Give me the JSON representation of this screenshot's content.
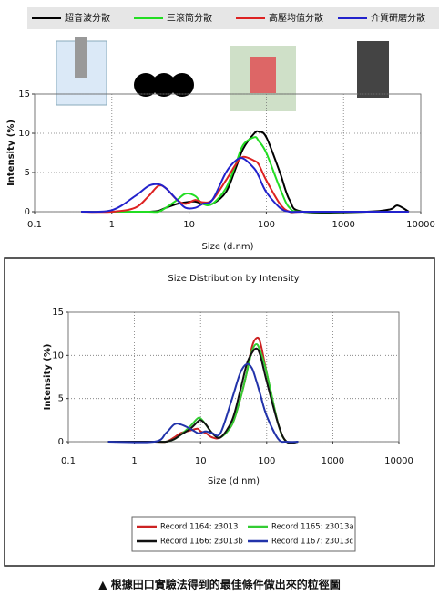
{
  "chart_data": [
    {
      "type": "line",
      "xscale": "log",
      "grid": true,
      "legend": "top",
      "xlabel": "Size (d.nm)",
      "ylabel": "Intensity (%)",
      "xlim": [
        0.1,
        10000
      ],
      "xticks": [
        0.1,
        1,
        10,
        100,
        1000,
        10000
      ],
      "ylim": [
        0,
        15
      ],
      "yticks": [
        0,
        5,
        10,
        15
      ],
      "x": [
        0.4,
        1,
        2,
        3,
        4,
        5,
        7,
        9,
        12,
        15,
        20,
        30,
        40,
        50,
        70,
        80,
        100,
        150,
        200,
        300,
        2000,
        4000,
        5000,
        7000
      ],
      "series": [
        {
          "name": "超音波分散",
          "color": "#000000",
          "values": [
            0,
            0,
            0,
            0,
            0.1,
            0.5,
            1,
            1.2,
            1.3,
            1,
            1,
            2.5,
            5.5,
            8,
            10,
            10.2,
            9.5,
            5,
            1.5,
            0,
            0,
            0.3,
            0.8,
            0
          ]
        },
        {
          "name": "三滾筒分散",
          "color": "#22dd22",
          "values": [
            0,
            0,
            0,
            0,
            0,
            0.5,
            1.5,
            2.3,
            2,
            1,
            1,
            3,
            6,
            8.5,
            9.5,
            9,
            7.5,
            3,
            0.5,
            0,
            0,
            0,
            0,
            0
          ]
        },
        {
          "name": "高壓均值分散",
          "color": "#dd2222",
          "values": [
            0,
            0,
            0.5,
            2,
            3.3,
            3,
            1.5,
            1,
            1.5,
            1.2,
            1.5,
            4,
            6,
            7,
            6.5,
            6,
            4,
            1,
            0,
            0,
            0,
            0,
            0,
            0
          ]
        },
        {
          "name": "介質研磨分散",
          "color": "#2222cc",
          "values": [
            0,
            0.2,
            2,
            3.3,
            3.5,
            3,
            1.5,
            0.5,
            0.5,
            1,
            1.5,
            5,
            6.5,
            6.8,
            5.5,
            4.5,
            2.5,
            0.5,
            0,
            0,
            0,
            0,
            0,
            0
          ]
        }
      ]
    },
    {
      "type": "line",
      "xscale": "log",
      "grid": true,
      "legend": "bottom",
      "title": "Size Distribution by Intensity",
      "xlabel": "Size (d.nm)",
      "ylabel": "Intensity (%)",
      "xlim": [
        0.1,
        10000
      ],
      "xticks": [
        0.1,
        1,
        10,
        100,
        1000,
        10000
      ],
      "ylim": [
        0,
        15
      ],
      "yticks": [
        0,
        5,
        10,
        15
      ],
      "x": [
        0.4,
        2,
        3,
        4,
        5,
        7,
        9,
        10,
        12,
        15,
        20,
        30,
        40,
        50,
        60,
        70,
        80,
        100,
        150,
        200,
        300
      ],
      "series": [
        {
          "name": "Record 1164: z3013",
          "color": "#cc2222",
          "values": [
            0,
            0,
            0,
            0.5,
            1,
            1.3,
            1.5,
            1.2,
            1,
            0.5,
            0.5,
            2,
            5,
            8,
            11,
            12,
            11.5,
            8,
            2,
            0,
            0
          ]
        },
        {
          "name": "Record 1165: z3013a",
          "color": "#33cc33",
          "values": [
            0,
            0,
            0,
            0.3,
            0.8,
            1.8,
            2.7,
            2.7,
            2,
            1,
            0.5,
            2,
            5,
            8,
            10.5,
            11.3,
            10.5,
            8,
            2,
            0,
            0
          ]
        },
        {
          "name": "Record 1166: z3013b",
          "color": "#111111",
          "values": [
            0,
            0,
            0,
            0.3,
            0.8,
            1.5,
            2.3,
            2.5,
            2,
            1,
            0.5,
            2.5,
            6,
            9,
            10.3,
            10.8,
            10,
            7,
            2,
            0,
            0
          ]
        },
        {
          "name": "Record 1167: z3013c",
          "color": "#2233aa",
          "values": [
            0,
            0,
            1,
            2,
            2,
            1.5,
            1,
            1,
            1.2,
            1,
            1,
            5,
            8,
            9,
            8.5,
            7,
            5.5,
            3,
            0.3,
            0,
            0
          ]
        }
      ]
    }
  ],
  "caption": "▲ 根據田口實驗法得到的最佳條件做出來的粒徑圖"
}
